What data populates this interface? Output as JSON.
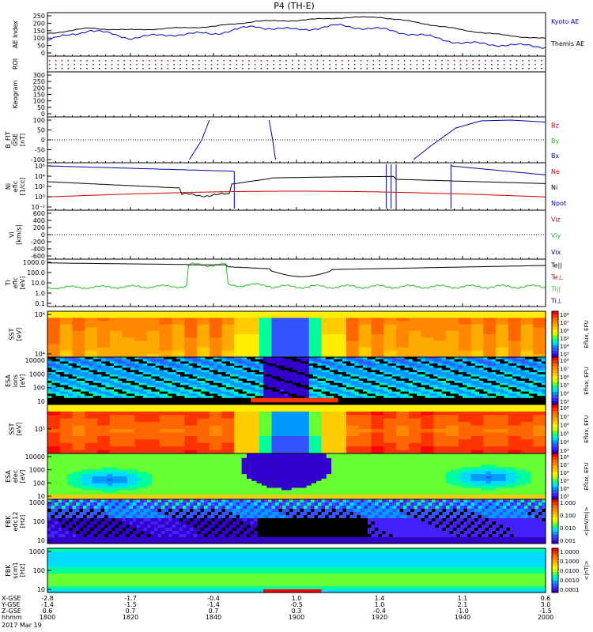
{
  "title": "P4 (TH-E)",
  "date_label": "2017 Mar 19",
  "colors": {
    "kyoto": "#0000cc",
    "themis": "#000000",
    "red": "#cc0000",
    "green": "#22bb22",
    "blue": "#0000aa",
    "black": "#000000"
  },
  "time_axis": {
    "row_labels": [
      "X-GSE",
      "Y-GSE",
      "Z-GSE",
      "hhmm"
    ],
    "columns": [
      {
        "x_gse": "-2.8",
        "y_gse": "-1.4",
        "z_gse": "0.6",
        "hhmm": "1800"
      },
      {
        "x_gse": "-1.7",
        "y_gse": "-1.5",
        "z_gse": "0.7",
        "hhmm": "1820"
      },
      {
        "x_gse": "-0.4",
        "y_gse": "-1.4",
        "z_gse": "0.7",
        "hhmm": "1840"
      },
      {
        "x_gse": "1.0",
        "y_gse": "-0.5",
        "z_gse": "0.3",
        "hhmm": "1900"
      },
      {
        "x_gse": "1.4",
        "y_gse": "1.0",
        "z_gse": "-0.4",
        "hhmm": "1920"
      },
      {
        "x_gse": "1.1",
        "y_gse": "2.1",
        "z_gse": "-1.0",
        "hhmm": "1940"
      },
      {
        "x_gse": "0.6",
        "y_gse": "3.0",
        "z_gse": "-1.5",
        "hhmm": "2000"
      }
    ]
  },
  "panels": {
    "ae": {
      "ylabel": "AE Index",
      "ticks": [
        "250",
        "200",
        "150",
        "100",
        "50",
        "0"
      ],
      "legend": [
        "Kyoto AE",
        "Themis AE"
      ]
    },
    "roi": {
      "ylabel": "ROI"
    },
    "keogram": {
      "ylabel": "Keogram",
      "ticks": [
        "300",
        "250",
        "200",
        "150",
        "100",
        "50",
        "0"
      ]
    },
    "bfit": {
      "ylabel": [
        "B_FIT",
        "GSE",
        "[nT]"
      ],
      "ticks": [
        "100",
        "50",
        "0",
        "-50",
        "-100"
      ],
      "legend": [
        "Bz",
        "By",
        "Bx"
      ]
    },
    "ni": {
      "ylabel": [
        "Ni",
        "eflc",
        "[1/cc]"
      ],
      "ticks": [
        "10⁶",
        "10⁴",
        "10²",
        "10⁰",
        "10⁻²"
      ],
      "legend": [
        "Ne",
        "Ni",
        "Npot"
      ]
    },
    "vi": {
      "ylabel": [
        "Vi",
        "[km/s]"
      ],
      "ticks": [
        "600",
        "400",
        "200",
        "0",
        "-200",
        "-400",
        "-600"
      ],
      "legend": [
        "Viz",
        "Viy",
        "Vix"
      ]
    },
    "ti": {
      "ylabel": [
        "Ti",
        "eflc",
        "[eV]"
      ],
      "ticks": [
        "1000.0",
        "100.0",
        "10.0",
        "1.0",
        "0.1"
      ],
      "legend": [
        "Te||",
        "Te⊥",
        "Ti||",
        "Ti⊥"
      ]
    },
    "sst_i": {
      "ylabel": [
        "SST",
        "[eV]"
      ],
      "ticks": [
        "10⁴",
        "10⁴"
      ]
    },
    "esa_i": {
      "ylabel": [
        "ESA",
        "ions",
        "[eV]"
      ],
      "ticks": [
        "10000",
        "1000",
        "100",
        "10"
      ]
    },
    "sst_e": {
      "ylabel": [
        "SST",
        "[eV]"
      ],
      "ticks": [
        "10⁵"
      ]
    },
    "esa_e": {
      "ylabel": [
        "ESA",
        "elec",
        "[eV]"
      ],
      "ticks": [
        "10000",
        "1000",
        "100",
        "10"
      ]
    },
    "fbk1": {
      "ylabel": [
        "FBK",
        "edc12",
        "[Hz]"
      ],
      "ticks": [
        "1000",
        "100",
        "10"
      ]
    },
    "fbk2": {
      "ylabel": [
        "FBK",
        "scm1",
        "[Hz]"
      ],
      "ticks": [
        "1000",
        "100",
        "10"
      ]
    }
  },
  "colorbars": {
    "eflux": {
      "label": "Eflux, EFU",
      "ticks": [
        "10⁸",
        "10⁷",
        "10⁶",
        "10⁵",
        "10⁴",
        "10³"
      ]
    },
    "fbk_e": {
      "label": "<|mV/m|>",
      "ticks": [
        "1.000",
        "0.100",
        "0.010",
        "0.001"
      ]
    },
    "fbk_b": {
      "label": "<|nT|>",
      "ticks": [
        "1.0000",
        "0.1000",
        "0.0100",
        "0.0010",
        "0.0001"
      ]
    }
  },
  "chart_data": {
    "type": "line",
    "x_units": "UT hhmm",
    "x": [
      "1800",
      "1810",
      "1820",
      "1830",
      "1840",
      "1850",
      "1900",
      "1910",
      "1920",
      "1930",
      "1940",
      "1950",
      "2000"
    ],
    "series": [
      {
        "name": "Kyoto AE",
        "values": [
          90,
          150,
          105,
          125,
          130,
          170,
          150,
          175,
          155,
          120,
          75,
          65,
          55
        ]
      },
      {
        "name": "Themis AE",
        "values": [
          130,
          160,
          150,
          160,
          170,
          200,
          205,
          220,
          225,
          190,
          150,
          120,
          100
        ]
      }
    ],
    "ylabel": "AE Index",
    "ylim": [
      0,
      250
    ]
  }
}
